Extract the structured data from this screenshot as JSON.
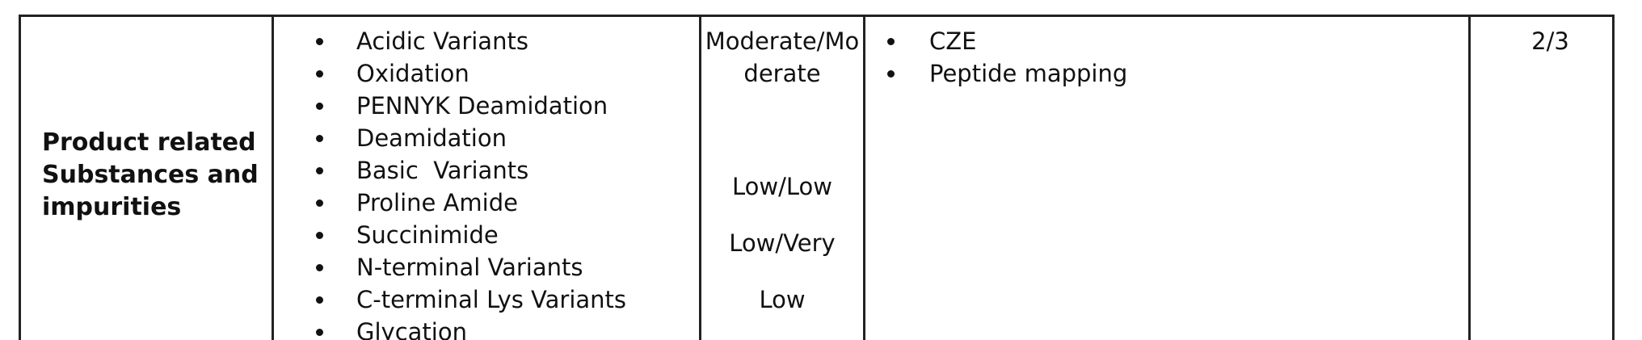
{
  "row": {
    "category_lines": [
      "Product related",
      "Substances and",
      "impurities"
    ],
    "attributes": [
      "Acidic Variants",
      "Oxidation",
      "PENNYK Deamidation",
      "Deamidation",
      "Basic  Variants",
      "Proline Amide",
      "Succinimide",
      "N-terminal Variants",
      "C-terminal Lys Variants",
      "Glycation"
    ],
    "criticality": {
      "line1": "Moderate/Mo",
      "line2": "derate",
      "line3": "Low/Low",
      "line4": "Low/Very",
      "line5": "Low"
    },
    "methods": [
      "CZE",
      "Peptide mapping"
    ],
    "score": "2/3"
  }
}
